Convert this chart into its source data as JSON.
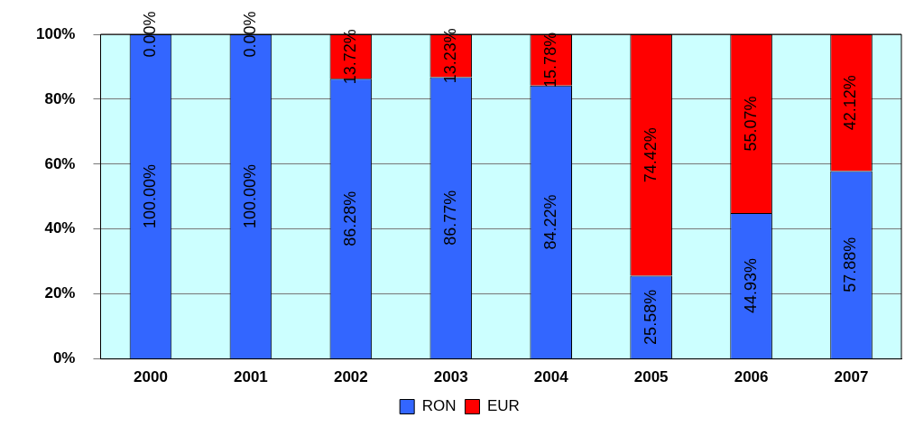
{
  "chart_data": {
    "type": "bar",
    "stacked": true,
    "categories": [
      "2000",
      "2001",
      "2002",
      "2003",
      "2004",
      "2005",
      "2006",
      "2007"
    ],
    "series": [
      {
        "name": "RON",
        "color": "#3366ff",
        "values": [
          100,
          100,
          86.28,
          86.77,
          84.22,
          25.58,
          44.93,
          57.88
        ],
        "value_labels": [
          "100.00%",
          "100.00%",
          "86.28%",
          "86.77%",
          "84.22%",
          "25.58%",
          "44.93%",
          "57.88%"
        ]
      },
      {
        "name": "EUR",
        "color": "#ff0000",
        "values": [
          0,
          0,
          13.72,
          13.23,
          15.78,
          74.42,
          55.07,
          42.12
        ],
        "value_labels": [
          "0.00%",
          "0.00%",
          "13.72%",
          "13.23%",
          "15.78%",
          "74.42%",
          "55.07%",
          "42.12%"
        ]
      }
    ],
    "ylim": [
      0,
      100
    ],
    "yticks": [
      {
        "value": 0,
        "label": "0%"
      },
      {
        "value": 20,
        "label": "20%"
      },
      {
        "value": 40,
        "label": "40%"
      },
      {
        "value": 60,
        "label": "60%"
      },
      {
        "value": 80,
        "label": "80%"
      },
      {
        "value": 100,
        "label": "100%"
      }
    ],
    "grid": "y",
    "legend": "bottom"
  }
}
